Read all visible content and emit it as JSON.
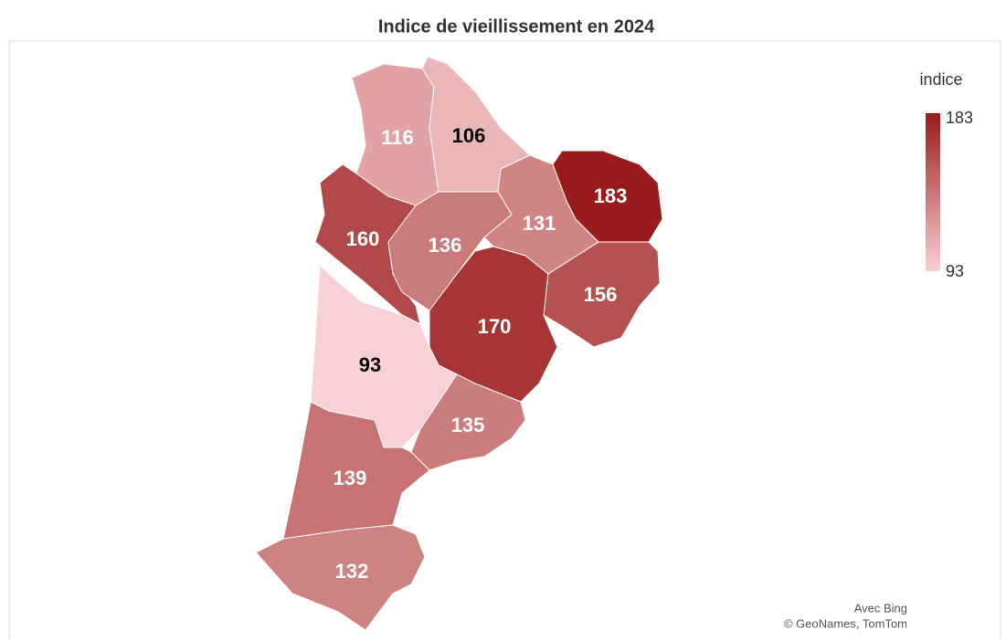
{
  "chart_data": {
    "type": "choropleth",
    "title": "Indice de vieillissement en 2024",
    "legend_title": "indice",
    "scale": {
      "min": 93,
      "max": 183,
      "colors": [
        "#f8d0d1",
        "#991b1b"
      ]
    },
    "values": [
      116,
      106,
      160,
      136,
      131,
      183,
      156,
      170,
      93,
      135,
      139,
      132
    ],
    "attribution": [
      "Avec Bing",
      "© GeoNames, TomTom"
    ]
  }
}
